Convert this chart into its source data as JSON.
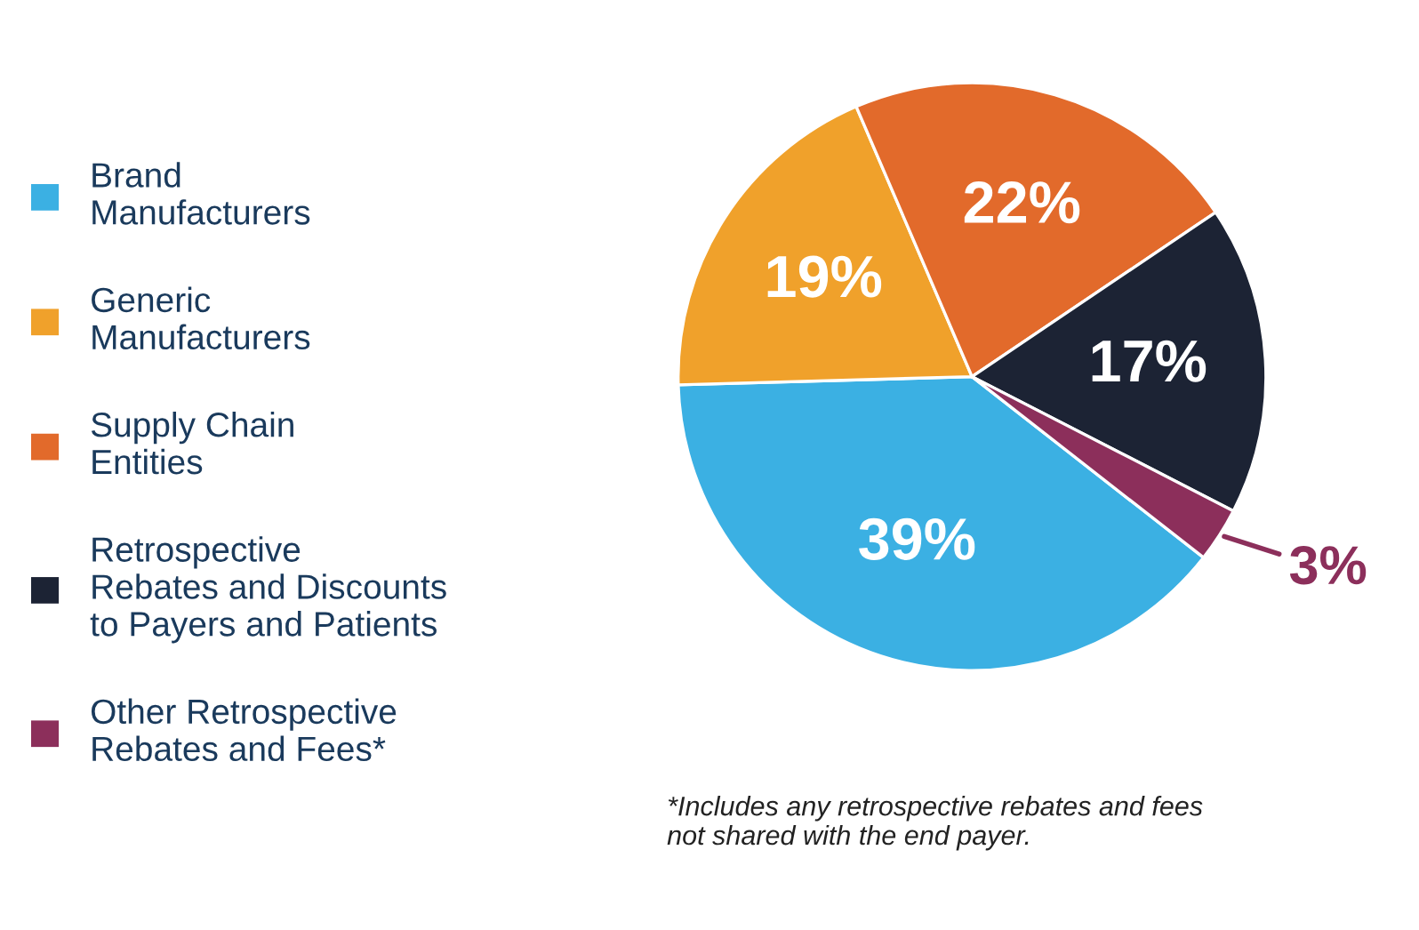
{
  "chart_data": {
    "type": "pie",
    "categories": [
      "Brand\nManufacturers",
      "Generic\nManufacturers",
      "Supply Chain\nEntities",
      "Retrospective\nRebates and Discounts\nto Payers and Patients",
      "Other Retrospective\nRebates and Fees*"
    ],
    "values": [
      39,
      19,
      22,
      17,
      3
    ],
    "value_labels": [
      "39%",
      "19%",
      "22%",
      "17%",
      "3%"
    ],
    "colors": [
      "#3bb0e3",
      "#f0a12b",
      "#e26a2b",
      "#1c2334",
      "#8c2f5b"
    ],
    "legend": "left",
    "annotations": [
      "*Includes any retrospective rebates and fees\nnot shared with the end payer."
    ]
  }
}
